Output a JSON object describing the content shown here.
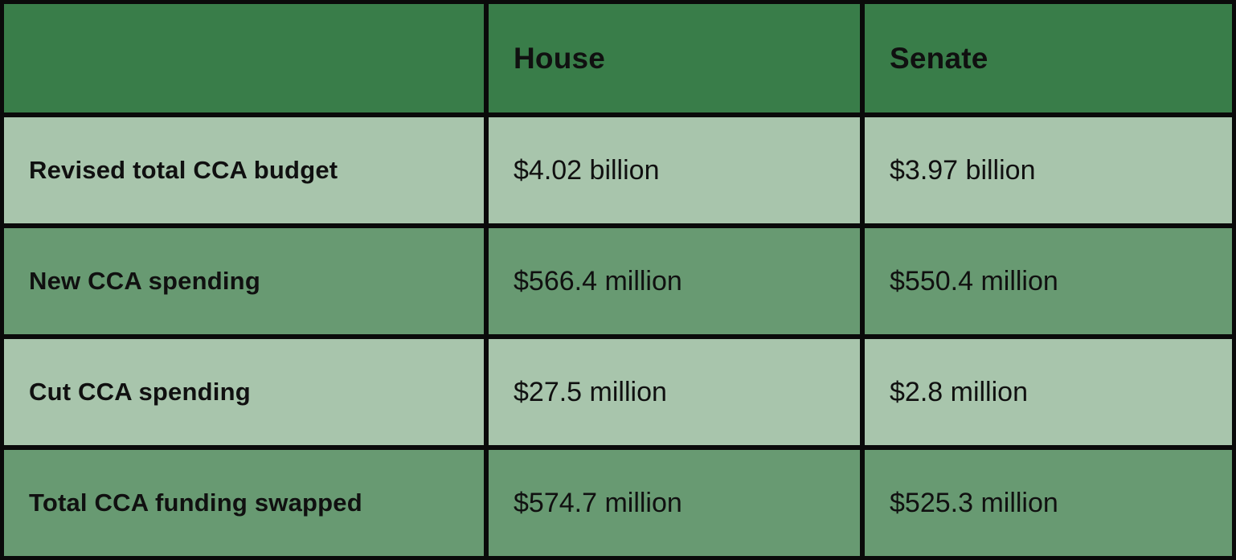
{
  "chart_data": {
    "type": "table",
    "title": "",
    "columns": [
      "",
      "House",
      "Senate"
    ],
    "rows": [
      {
        "label": "Revised total CCA budget",
        "house": "$4.02 billion",
        "senate": "$3.97 billion"
      },
      {
        "label": "New CCA spending",
        "house": "$566.4 million",
        "senate": "$550.4 million"
      },
      {
        "label": "Cut CCA spending",
        "house": "$27.5 million",
        "senate": "$2.8 million"
      },
      {
        "label": "Total CCA funding swapped",
        "house": "$574.7 million",
        "senate": "$525.3 million"
      }
    ]
  },
  "colors": {
    "header_bg": "#397d49",
    "row_light": "#a8c5ac",
    "row_medium": "#689a72",
    "border": "#0a0a0a",
    "text": "#101010"
  }
}
